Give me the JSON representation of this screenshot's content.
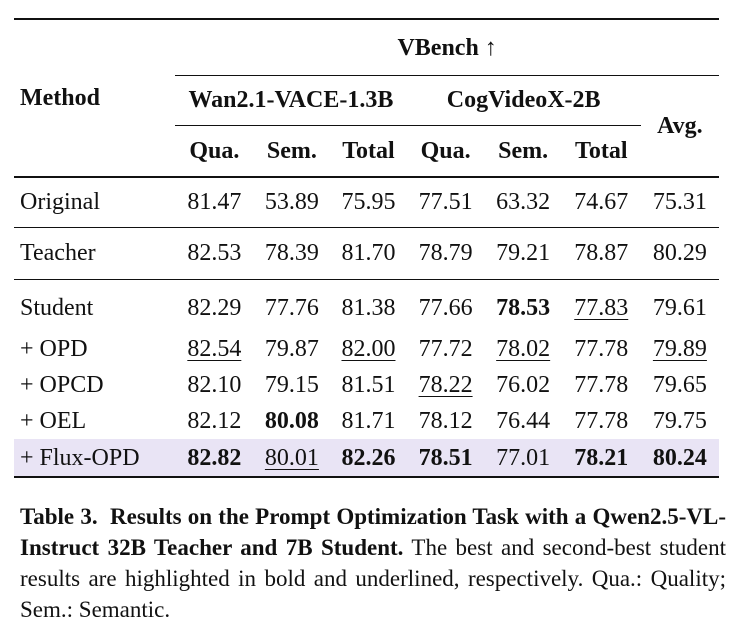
{
  "table": {
    "method_header": "Method",
    "benchmark_header": "VBench ↑",
    "group1": "Wan2.1-VACE-1.3B",
    "group2": "CogVideoX-2B",
    "avg_header": "Avg.",
    "subheaders": [
      "Qua.",
      "Sem.",
      "Total",
      "Qua.",
      "Sem.",
      "Total"
    ],
    "rows": [
      {
        "method": "Original",
        "values": [
          "81.47",
          "53.89",
          "75.95",
          "77.51",
          "63.32",
          "74.67",
          "75.31"
        ],
        "bold": [
          false,
          false,
          false,
          false,
          false,
          false,
          false
        ],
        "underline": [
          false,
          false,
          false,
          false,
          false,
          false,
          false
        ]
      },
      {
        "method": "Teacher",
        "values": [
          "82.53",
          "78.39",
          "81.70",
          "78.79",
          "79.21",
          "78.87",
          "80.29"
        ],
        "bold": [
          false,
          false,
          false,
          false,
          false,
          false,
          false
        ],
        "underline": [
          false,
          false,
          false,
          false,
          false,
          false,
          false
        ]
      },
      {
        "method": "Student",
        "values": [
          "82.29",
          "77.76",
          "81.38",
          "77.66",
          "78.53",
          "77.83",
          "79.61"
        ],
        "bold": [
          false,
          false,
          false,
          false,
          true,
          false,
          false
        ],
        "underline": [
          false,
          false,
          false,
          false,
          false,
          true,
          false
        ]
      },
      {
        "method": "+ OPD",
        "values": [
          "82.54",
          "79.87",
          "82.00",
          "77.72",
          "78.02",
          "77.78",
          "79.89"
        ],
        "bold": [
          false,
          false,
          false,
          false,
          false,
          false,
          false
        ],
        "underline": [
          true,
          false,
          true,
          false,
          true,
          false,
          true
        ]
      },
      {
        "method": "+ OPCD",
        "values": [
          "82.10",
          "79.15",
          "81.51",
          "78.22",
          "76.02",
          "77.78",
          "79.65"
        ],
        "bold": [
          false,
          false,
          false,
          false,
          false,
          false,
          false
        ],
        "underline": [
          false,
          false,
          false,
          true,
          false,
          false,
          false
        ]
      },
      {
        "method": "+ OEL",
        "values": [
          "82.12",
          "80.08",
          "81.71",
          "78.12",
          "76.44",
          "77.78",
          "79.75"
        ],
        "bold": [
          false,
          true,
          false,
          false,
          false,
          false,
          false
        ],
        "underline": [
          false,
          false,
          false,
          false,
          false,
          false,
          false
        ]
      },
      {
        "method": "+ Flux-OPD",
        "values": [
          "82.82",
          "80.01",
          "82.26",
          "78.51",
          "77.01",
          "78.21",
          "80.24"
        ],
        "bold": [
          true,
          false,
          true,
          true,
          false,
          true,
          true
        ],
        "underline": [
          false,
          true,
          false,
          false,
          false,
          false,
          false
        ]
      }
    ]
  },
  "caption": {
    "label": "Table 3.",
    "title": "Results on the Prompt Optimization Task with a Qwen2.5-VL-Instruct 32B Teacher and 7B Student.",
    "text": "The best and second-best student results are highlighted in bold and underlined, respectively. Qua.: Quality; Sem.: Semantic."
  },
  "colors": {
    "highlight_row": "#e9e4f5"
  }
}
